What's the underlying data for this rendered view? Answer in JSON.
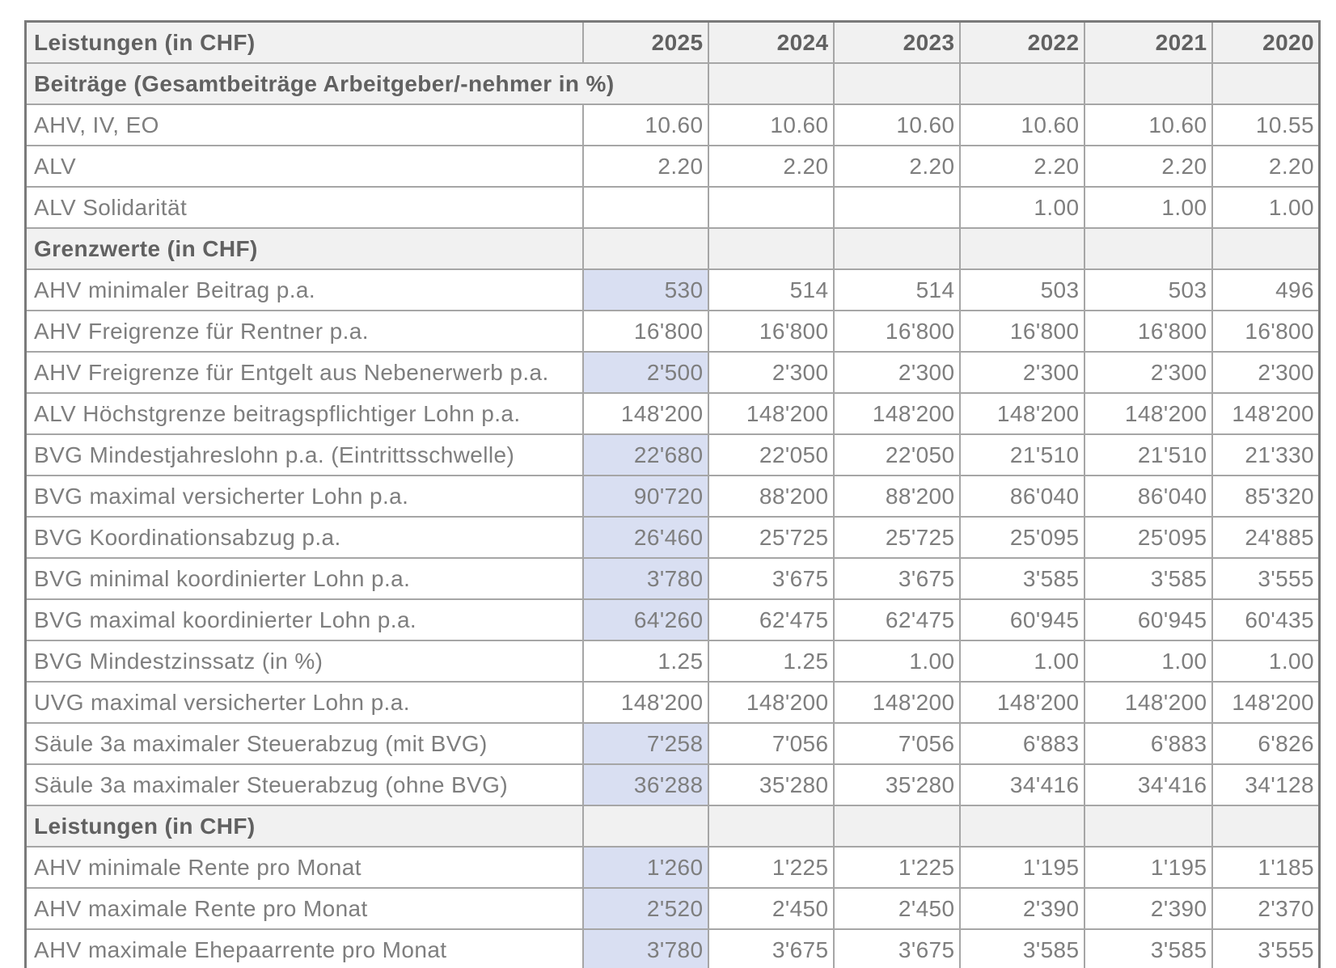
{
  "chart_data": {
    "type": "table",
    "title": "Leistungen (in CHF)",
    "currency_note": "CHF",
    "header": {
      "label": "Leistungen (in CHF)",
      "years": [
        "2025",
        "2024",
        "2023",
        "2022",
        "2021",
        "2020"
      ]
    },
    "sections": [
      {
        "title": "Beiträge (Gesamtbeiträge Arbeitgeber/-nehmer in %)",
        "title_overflows_into_first_year_column": true,
        "rows": [
          {
            "label": "AHV, IV, EO",
            "values": [
              "10.60",
              "10.60",
              "10.60",
              "10.60",
              "10.60",
              "10.55"
            ],
            "highlight_2025": false
          },
          {
            "label": "ALV",
            "values": [
              "2.20",
              "2.20",
              "2.20",
              "2.20",
              "2.20",
              "2.20"
            ],
            "highlight_2025": false
          },
          {
            "label": "ALV Solidarität",
            "values": [
              "",
              "",
              "",
              "1.00",
              "1.00",
              "1.00"
            ],
            "highlight_2025": false
          }
        ]
      },
      {
        "title": "Grenzwerte (in CHF)",
        "title_overflows_into_first_year_column": false,
        "rows": [
          {
            "label": "AHV minimaler Beitrag p.a.",
            "values": [
              "530",
              "514",
              "514",
              "503",
              "503",
              "496"
            ],
            "highlight_2025": true
          },
          {
            "label": "AHV Freigrenze für Rentner p.a.",
            "values": [
              "16'800",
              "16'800",
              "16'800",
              "16'800",
              "16'800",
              "16'800"
            ],
            "highlight_2025": false
          },
          {
            "label": "AHV Freigrenze für Entgelt aus Nebenerwerb p.a.",
            "values": [
              "2'500",
              "2'300",
              "2'300",
              "2'300",
              "2'300",
              "2'300"
            ],
            "highlight_2025": true
          },
          {
            "label": "ALV Höchstgrenze beitragspflichtiger Lohn p.a.",
            "values": [
              "148'200",
              "148'200",
              "148'200",
              "148'200",
              "148'200",
              "148'200"
            ],
            "highlight_2025": false
          },
          {
            "label": "BVG Mindestjahreslohn p.a. (Eintrittsschwelle)",
            "values": [
              "22'680",
              "22'050",
              "22'050",
              "21'510",
              "21'510",
              "21'330"
            ],
            "highlight_2025": true
          },
          {
            "label": "BVG maximal versicherter Lohn p.a.",
            "values": [
              "90'720",
              "88'200",
              "88'200",
              "86'040",
              "86'040",
              "85'320"
            ],
            "highlight_2025": true
          },
          {
            "label": "BVG Koordinationsabzug p.a.",
            "values": [
              "26'460",
              "25'725",
              "25'725",
              "25'095",
              "25'095",
              "24'885"
            ],
            "highlight_2025": true
          },
          {
            "label": "BVG minimal koordinierter Lohn p.a.",
            "values": [
              "3'780",
              "3'675",
              "3'675",
              "3'585",
              "3'585",
              "3'555"
            ],
            "highlight_2025": true
          },
          {
            "label": "BVG maximal koordinierter Lohn p.a.",
            "values": [
              "64'260",
              "62'475",
              "62'475",
              "60'945",
              "60'945",
              "60'435"
            ],
            "highlight_2025": true
          },
          {
            "label": "BVG Mindestzinssatz (in %)",
            "values": [
              "1.25",
              "1.25",
              "1.00",
              "1.00",
              "1.00",
              "1.00"
            ],
            "highlight_2025": false
          },
          {
            "label": "UVG maximal versicherter Lohn p.a.",
            "values": [
              "148'200",
              "148'200",
              "148'200",
              "148'200",
              "148'200",
              "148'200"
            ],
            "highlight_2025": false
          },
          {
            "label": "Säule 3a maximaler Steuerabzug (mit BVG)",
            "values": [
              "7'258",
              "7'056",
              "7'056",
              "6'883",
              "6'883",
              "6'826"
            ],
            "highlight_2025": true
          },
          {
            "label": "Säule 3a maximaler Steuerabzug (ohne BVG)",
            "values": [
              "36'288",
              "35'280",
              "35'280",
              "34'416",
              "34'416",
              "34'128"
            ],
            "highlight_2025": true
          }
        ]
      },
      {
        "title": "Leistungen (in CHF)",
        "title_overflows_into_first_year_column": false,
        "rows": [
          {
            "label": "AHV minimale Rente pro Monat",
            "values": [
              "1'260",
              "1'225",
              "1'225",
              "1'195",
              "1'195",
              "1'185"
            ],
            "highlight_2025": true
          },
          {
            "label": "AHV maximale Rente pro Monat",
            "values": [
              "2'520",
              "2'450",
              "2'450",
              "2'390",
              "2'390",
              "2'370"
            ],
            "highlight_2025": true
          },
          {
            "label": "AHV maximale Ehepaarrente pro Monat",
            "values": [
              "3'780",
              "3'675",
              "3'675",
              "3'585",
              "3'585",
              "3'555"
            ],
            "highlight_2025": true
          }
        ]
      }
    ],
    "colors": {
      "highlight_2025": "#d9dff2",
      "section_background": "#f1f1f1",
      "grid_line": "#a6a6a6",
      "outer_border": "#7a7a7a",
      "data_text": "#7e7e7e",
      "header_text": "#616161"
    },
    "layout_hints": {
      "grid": true,
      "header_years_right_aligned": true,
      "numbers_right_aligned": true
    }
  }
}
